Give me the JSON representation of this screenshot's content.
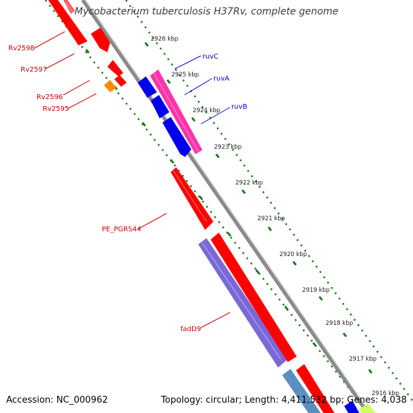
{
  "title": "Mycobacterium tuberculosis H37Rv, complete genome",
  "footer": {
    "accession": "Accession: NC_000962",
    "summary": "Topology: circular; Length: 4,411,532 bp; Genes: 4,038"
  },
  "colors": {
    "backbone": "#9a9a9a",
    "tick": "#1a7a1a",
    "forward_gene": "#ff0000",
    "reverse_gene": "#ff0000",
    "ruv_genes": "#0000ee",
    "ruvC": "#ff33aa",
    "Rv2596": "#ff8c00",
    "fadD9": "#7b68d8",
    "teal_gene": "#5b8fc0",
    "label_red": "#cc0000",
    "label_blue": "#0000cc"
  },
  "scale_labels": [
    "2926 kbp",
    "2925 kbp",
    "2924 kbp",
    "2923 kbp",
    "2922 kbp",
    "2921 kbp",
    "2920 kbp",
    "2919 kbp",
    "2918 kbp",
    "2917 kbp",
    "2916 kbp"
  ],
  "gene_labels": [
    {
      "text": "Rv2598",
      "color": "red"
    },
    {
      "text": "Rv2597",
      "color": "red"
    },
    {
      "text": "Rv2596",
      "color": "red"
    },
    {
      "text": "Rv2595",
      "color": "red"
    },
    {
      "text": "PE_PGRS44",
      "color": "red"
    },
    {
      "text": "fadD9",
      "color": "red"
    },
    {
      "text": "ruvC",
      "color": "blue"
    },
    {
      "text": "ruvA",
      "color": "blue"
    },
    {
      "text": "ruvB",
      "color": "blue"
    }
  ]
}
